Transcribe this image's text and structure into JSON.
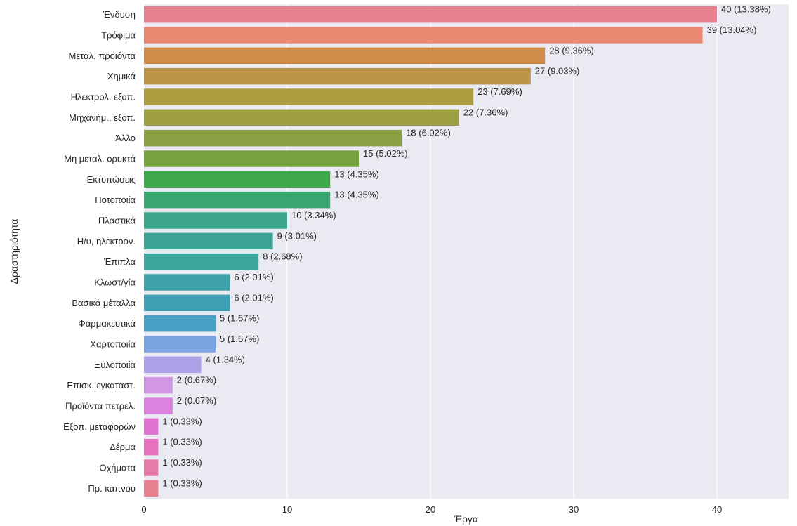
{
  "chart_data": {
    "type": "bar",
    "orientation": "horizontal",
    "xlabel": "Έργα",
    "ylabel": "Δραστηριότητα",
    "xlim": [
      0,
      45
    ],
    "xticks": [
      0,
      10,
      20,
      30,
      40
    ],
    "grid": true,
    "background": "#eaeaf2",
    "categories": [
      "Ένδυση",
      "Τρόφιμα",
      "Μεταλ. προϊόντα",
      "Χημικά",
      "Ηλεκτρολ. εξοπ.",
      "Μηχανήμ., εξοπ.",
      "Άλλο",
      "Μη μεταλ. ορυκτά",
      "Εκτυπώσεις",
      "Ποτοποιία",
      "Πλαστικά",
      "Η/υ, ηλεκτρον.",
      "Έπιπλα",
      "Κλωστ/γία",
      "Βασικά μέταλλα",
      "Φαρμακευτικά",
      "Χαρτοποιία",
      "Ξυλοποιία",
      "Επισκ. εγκαταστ.",
      "Προϊόντα πετρελ.",
      "Εξοπ. μεταφορών",
      "Δέρμα",
      "Οχήματα",
      "Πρ. καπνού"
    ],
    "values": [
      40,
      39,
      28,
      27,
      23,
      22,
      18,
      15,
      13,
      13,
      10,
      9,
      8,
      6,
      6,
      5,
      5,
      4,
      2,
      2,
      1,
      1,
      1,
      1
    ],
    "data_labels": [
      "40 (13.38%)",
      "39 (13.04%)",
      "28 (9.36%)",
      "27 (9.03%)",
      "23 (7.69%)",
      "22 (7.36%)",
      "18 (6.02%)",
      "15 (5.02%)",
      "13 (4.35%)",
      "13 (4.35%)",
      "10 (3.34%)",
      "9 (3.01%)",
      "8 (2.68%)",
      "6 (2.01%)",
      "6 (2.01%)",
      "5 (1.67%)",
      "5 (1.67%)",
      "4 (1.34%)",
      "2 (0.67%)",
      "2 (0.67%)",
      "1 (0.33%)",
      "1 (0.33%)",
      "1 (0.33%)",
      "1 (0.33%)"
    ],
    "colors": [
      "#e8808f",
      "#ea8a72",
      "#cf8b4a",
      "#bb9447",
      "#ad9b3f",
      "#9e9f42",
      "#8c9f42",
      "#75a23f",
      "#3fa84a",
      "#3ba570",
      "#3ca58b",
      "#3ca395",
      "#3ca59c",
      "#3fa2a8",
      "#3f9fb5",
      "#48a2c7",
      "#79a4e2",
      "#aea1e8",
      "#d398e6",
      "#dc82e0",
      "#e272d4",
      "#e872c0",
      "#e87aa8",
      "#e8808f"
    ]
  }
}
